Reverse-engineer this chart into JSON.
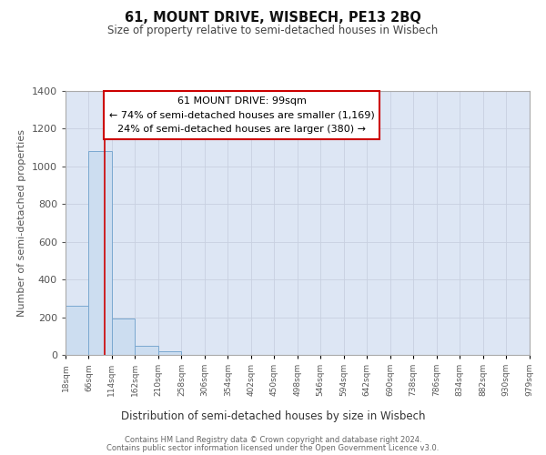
{
  "title": "61, MOUNT DRIVE, WISBECH, PE13 2BQ",
  "subtitle": "Size of property relative to semi-detached houses in Wisbech",
  "xlabel": "Distribution of semi-detached houses by size in Wisbech",
  "ylabel": "Number of semi-detached properties",
  "footnote1": "Contains HM Land Registry data © Crown copyright and database right 2024.",
  "footnote2": "Contains public sector information licensed under the Open Government Licence v3.0.",
  "annotation_line1": "61 MOUNT DRIVE: 99sqm",
  "annotation_line2": "← 74% of semi-detached houses are smaller (1,169)",
  "annotation_line3": "24% of semi-detached houses are larger (380) →",
  "property_size": 99,
  "bar_edges": [
    18,
    66,
    114,
    162,
    210,
    258,
    306,
    354,
    402,
    450,
    498,
    546,
    594,
    642,
    690,
    738,
    786,
    834,
    882,
    930,
    979
  ],
  "bar_heights": [
    261,
    1083,
    191,
    47,
    18,
    0,
    0,
    0,
    0,
    0,
    0,
    0,
    0,
    0,
    0,
    0,
    0,
    0,
    0,
    0
  ],
  "bar_color": "#ccddf0",
  "bar_edge_color": "#7aa8d0",
  "property_line_color": "#cc0000",
  "ylim": [
    0,
    1400
  ],
  "yticks": [
    0,
    200,
    400,
    600,
    800,
    1000,
    1200,
    1400
  ],
  "grid_color": "#c8d0e0",
  "bg_color": "#dde6f4",
  "annotation_box_color": "white",
  "annotation_box_edge": "#cc0000"
}
